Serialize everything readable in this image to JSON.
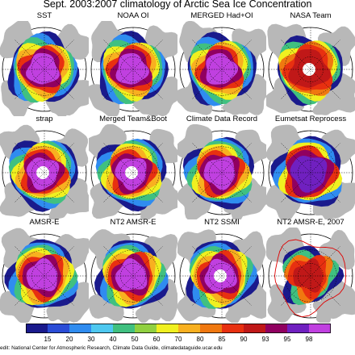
{
  "title": "Sept. 2003:2007 climatology of Arctic Sea Ice Concentration",
  "panels": [
    {
      "label": "SST",
      "variant": "full",
      "pole_hole": false
    },
    {
      "label": "NOAA OI",
      "variant": "full",
      "pole_hole": false
    },
    {
      "label": "MERGED Had+OI",
      "variant": "full",
      "pole_hole": false
    },
    {
      "label": "NASA Team",
      "variant": "team",
      "pole_hole": true
    },
    {
      "label": "strap",
      "variant": "full",
      "pole_hole": true
    },
    {
      "label": "Merged Team&Boot",
      "variant": "full",
      "pole_hole": true
    },
    {
      "label": "Climate Data Record",
      "variant": "full",
      "pole_hole": false
    },
    {
      "label": "Eumetsat Reprocess",
      "variant": "eum",
      "pole_hole": false
    },
    {
      "label": "AMSR-E",
      "variant": "full",
      "pole_hole": false
    },
    {
      "label": "NT2 AMSR-E",
      "variant": "full",
      "pole_hole": false
    },
    {
      "label": "NT2 SSMI",
      "variant": "full",
      "pole_hole": true
    },
    {
      "label": "NT2 AMSR-E, 2007",
      "variant": "y2007",
      "pole_hole": false
    }
  ],
  "colorbar": {
    "labels": [
      "15",
      "20",
      "30",
      "40",
      "50",
      "60",
      "70",
      "80",
      "85",
      "90",
      "93",
      "95",
      "98"
    ],
    "colors": [
      "#1a1a8c",
      "#2a4cd6",
      "#2f8cf0",
      "#4ec8f0",
      "#40c080",
      "#90d040",
      "#f0f020",
      "#f8b020",
      "#f07810",
      "#e83010",
      "#c01818",
      "#900060",
      "#7020c0",
      "#c040e0"
    ]
  },
  "credit": "edit: National Center for Atmospheric Research, Climate Data Guide, climatedataguide.ucar.edu"
}
